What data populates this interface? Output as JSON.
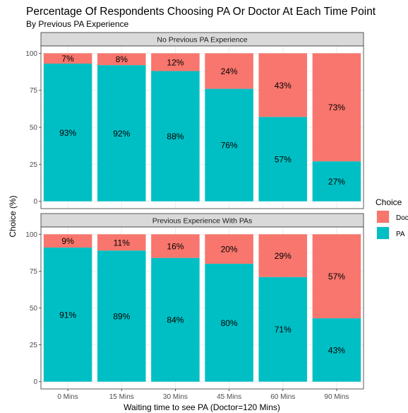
{
  "chart_data": {
    "type": "bar",
    "stacked": true,
    "title": "Percentage Of Respondents Choosing PA Or Doctor At Each Time Point",
    "subtitle": "By Previous PA Experience",
    "xlabel": "Waiting time to see PA (Doctor=120 Mins)",
    "ylabel": "Choice (%)",
    "ylim": [
      0,
      100
    ],
    "yticks": [
      "0",
      "25",
      "50",
      "75",
      "100"
    ],
    "categories": [
      "0 Mins",
      "15 Mins",
      "30 Mins",
      "45 Mins",
      "60 Mins",
      "90 Mins"
    ],
    "legend": {
      "title": "Choice",
      "position": "right",
      "items": [
        {
          "label": "Doctor",
          "color": "#F8766D"
        },
        {
          "label": "PA",
          "color": "#00BFC4"
        }
      ]
    },
    "grid": true,
    "panels": [
      {
        "strip": "No Previous PA Experience",
        "series": [
          {
            "name": "PA",
            "color": "#00BFC4",
            "values": [
              93,
              92,
              88,
              76,
              57,
              27
            ],
            "labels": [
              "93%",
              "92%",
              "88%",
              "76%",
              "57%",
              "27%"
            ]
          },
          {
            "name": "Doctor",
            "color": "#F8766D",
            "values": [
              7,
              8,
              12,
              24,
              43,
              73
            ],
            "labels": [
              "7%",
              "8%",
              "12%",
              "24%",
              "43%",
              "73%"
            ]
          }
        ]
      },
      {
        "strip": "Previous Experience With PAs",
        "series": [
          {
            "name": "PA",
            "color": "#00BFC4",
            "values": [
              91,
              89,
              84,
              80,
              71,
              43
            ],
            "labels": [
              "91%",
              "89%",
              "84%",
              "80%",
              "71%",
              "43%"
            ]
          },
          {
            "name": "Doctor",
            "color": "#F8766D",
            "values": [
              9,
              11,
              16,
              20,
              29,
              57
            ],
            "labels": [
              "9%",
              "11%",
              "16%",
              "20%",
              "29%",
              "57%"
            ]
          }
        ]
      }
    ]
  }
}
